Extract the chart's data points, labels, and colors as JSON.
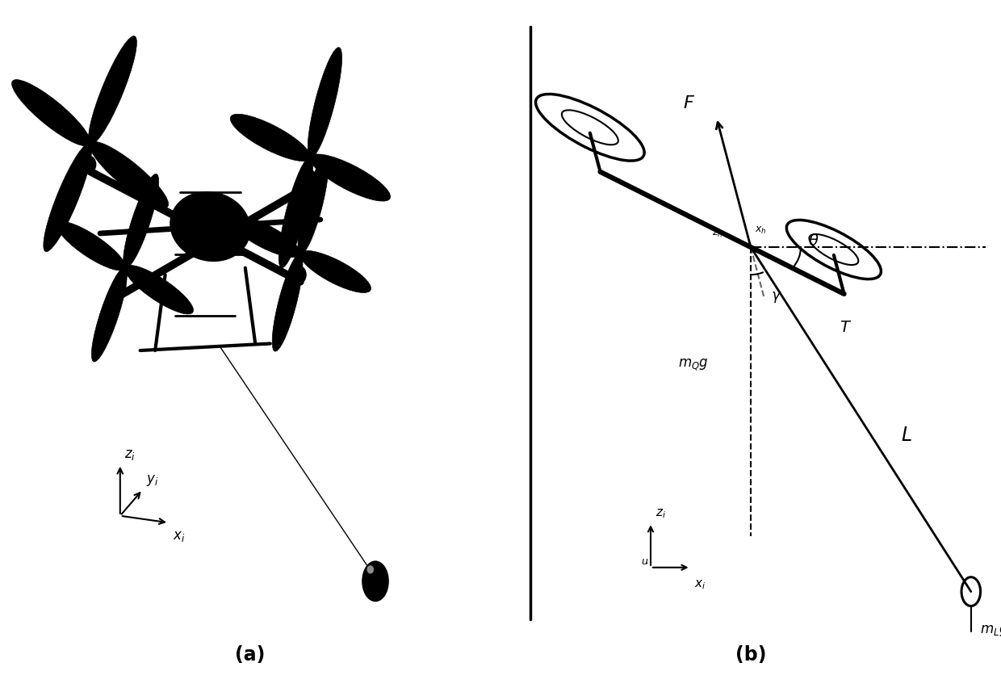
{
  "bg_color": "#ffffff",
  "label_a": "(a)",
  "label_b": "(b)",
  "drone_color": "#000000",
  "line_color": "#000000"
}
